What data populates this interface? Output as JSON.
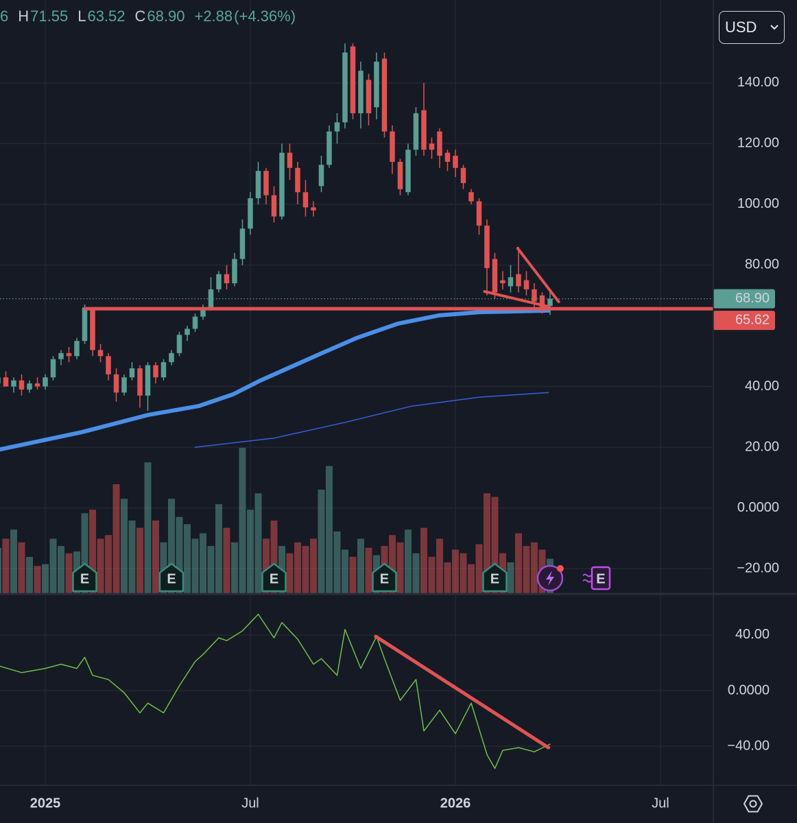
{
  "chart_data": {
    "type": "candlestick",
    "header": [
      "6",
      "H",
      "71.55",
      "L",
      "63.52",
      "C",
      "68.90",
      "+2.88",
      "(+4.36%)"
    ],
    "currency": "USD",
    "xlim": [
      -5.74,
      84.7
    ],
    "xticks": [
      {
        "value": 0,
        "label": "2025"
      },
      {
        "value": 26,
        "label": "Jul"
      },
      {
        "value": 52,
        "label": "2026"
      },
      {
        "value": 78,
        "label": "Jul"
      }
    ],
    "ylim": [
      -28.1,
      167.3
    ],
    "yticks": [
      {
        "value": 140,
        "label": "140.00"
      },
      {
        "value": 120,
        "label": "120.00"
      },
      {
        "value": 100,
        "label": "100.00"
      },
      {
        "value": 80,
        "label": "80.00"
      },
      {
        "value": 40,
        "label": "40.00"
      },
      {
        "value": 20,
        "label": "20.00"
      },
      {
        "value": 0,
        "label": "0.0000"
      },
      {
        "value": -20,
        "label": "−20.00"
      }
    ],
    "x": [
      -6,
      -5,
      -4,
      -3,
      -2,
      -1,
      0,
      1,
      2,
      3,
      4,
      5,
      6,
      7,
      8,
      9,
      10,
      11,
      12,
      13,
      14,
      15,
      16,
      17,
      18,
      19,
      20,
      21,
      22,
      23,
      24,
      25,
      26,
      27,
      28,
      29,
      30,
      31,
      32,
      33,
      34,
      35,
      36,
      37,
      38,
      39,
      40,
      41,
      42,
      43,
      44,
      45,
      46,
      47,
      48,
      49,
      50,
      51,
      52,
      53,
      54,
      55,
      56,
      57,
      58,
      59,
      60,
      61,
      62,
      63,
      64
    ],
    "open": [
      41,
      43,
      40,
      42,
      39,
      41,
      40,
      43,
      49,
      51,
      50,
      55,
      66,
      52,
      50,
      44,
      38,
      43,
      46,
      37,
      47,
      43,
      48,
      51,
      57,
      59,
      63,
      66,
      72,
      77,
      74,
      82,
      92,
      102,
      111,
      103,
      96,
      117,
      112,
      104,
      99,
      106,
      113,
      124,
      127,
      152,
      130,
      141,
      132,
      148,
      124,
      114,
      104,
      118,
      131,
      120,
      124,
      117,
      116,
      112,
      104,
      101,
      93,
      82,
      75,
      73,
      77,
      75,
      72,
      70,
      66.5
    ],
    "high": [
      44,
      45,
      43,
      44,
      42,
      43,
      44,
      50,
      52,
      53,
      56,
      67,
      66,
      54,
      51,
      46,
      44,
      48,
      47,
      48,
      48,
      49,
      52,
      58,
      60,
      64,
      67,
      76,
      78,
      80,
      84,
      95,
      104,
      114,
      112,
      106,
      120,
      120,
      114,
      108,
      101,
      116,
      126,
      130,
      153,
      153,
      147,
      143,
      150,
      150,
      126,
      115,
      120,
      132,
      140,
      122,
      125,
      118,
      118,
      113,
      105,
      102,
      95,
      84,
      78,
      80,
      86,
      78,
      74,
      71,
      71.55
    ],
    "low": [
      39,
      40,
      38,
      37,
      38,
      39,
      39,
      42,
      47,
      48,
      49,
      54,
      50,
      48,
      42,
      35,
      37,
      42,
      33,
      32,
      41,
      42,
      47,
      50,
      55,
      58,
      62,
      65,
      71,
      72,
      73,
      80,
      90,
      100,
      100,
      94,
      95,
      108,
      100,
      96,
      96,
      104,
      112,
      120,
      125,
      128,
      125,
      126,
      128,
      122,
      110,
      103,
      103,
      116,
      116,
      115,
      112,
      111,
      109,
      105,
      100,
      90,
      70,
      69,
      72,
      71,
      71,
      70,
      66,
      64,
      63.52
    ],
    "close": [
      43,
      40,
      42,
      39,
      41,
      40,
      43,
      49,
      51,
      50,
      55,
      66,
      52,
      50,
      44,
      38,
      43,
      46,
      37,
      47,
      43,
      48,
      51,
      57,
      59,
      63,
      66,
      72,
      77,
      74,
      82,
      92,
      102,
      111,
      103,
      96,
      117,
      112,
      104,
      99,
      98,
      113,
      124,
      127,
      150,
      130,
      144,
      130,
      147,
      124,
      114,
      105,
      118,
      130,
      118,
      118,
      116,
      114,
      112,
      107,
      101,
      93,
      79,
      71,
      74,
      76,
      73,
      72,
      68,
      66.02,
      68.9
    ],
    "volume": [
      25,
      30,
      35,
      28,
      20,
      15,
      16,
      30,
      26,
      22,
      23,
      44,
      46,
      30,
      32,
      60,
      52,
      40,
      36,
      72,
      40,
      28,
      52,
      42,
      38,
      30,
      33,
      26,
      49,
      36,
      28,
      80,
      46,
      55,
      30,
      40,
      26,
      22,
      28,
      26,
      30,
      57,
      70,
      34,
      24,
      20,
      30,
      25,
      21,
      26,
      32,
      28,
      35,
      22,
      36,
      20,
      30,
      17,
      24,
      22,
      16,
      27,
      55,
      53,
      22,
      17,
      33,
      26,
      28,
      24,
      19
    ],
    "vlim": [
      0,
      100
    ],
    "up_color": "#5a9e94",
    "down_color": "#e05353",
    "moving_averages": [
      {
        "color": "#4a8fe7",
        "width": 6,
        "x": [
          -5.7,
          4.7,
          13,
          19.5,
          23.8,
          27.3,
          35.1,
          39.5,
          44.7,
          49.9,
          55.1,
          63.8
        ],
        "values": [
          19.3,
          25,
          30.6,
          33.6,
          37.4,
          42,
          51,
          56,
          60.7,
          63.4,
          64.5,
          65
        ]
      },
      {
        "color": "#3a5ee0",
        "width": 1.5,
        "x": [
          19,
          29,
          37.7,
          46.4,
          55.1,
          63.8
        ],
        "values": [
          20,
          23,
          28,
          33.5,
          36.5,
          38
        ]
      }
    ],
    "last_price": {
      "value": 68.9,
      "label": "68.90",
      "color": "#5a9e94"
    },
    "level": {
      "from_x": 4.9,
      "value": 65.62,
      "color": "#e05353"
    },
    "drawings": [
      {
        "x": [
          55.7,
          63.8
        ],
        "values": [
          71.3,
          66.3
        ]
      },
      {
        "x": [
          59.9,
          65.1
        ],
        "values": [
          85.5,
          67.9
        ]
      }
    ],
    "earnings": {
      "x": [
        5,
        16,
        29,
        43,
        57
      ],
      "label": "E",
      "upcoming_x": 70
    },
    "indicator": {
      "color": "#6fbf4a",
      "y2lim": [
        -68.1,
        68.6
      ],
      "y2ticks": [
        {
          "value": 40,
          "label": "40.00"
        },
        {
          "value": 0,
          "label": "0.0000"
        },
        {
          "value": -40,
          "label": "−40.00"
        }
      ],
      "x": [
        -6,
        -3,
        0,
        2,
        4,
        5,
        6,
        8,
        10,
        12,
        13,
        15,
        17,
        19,
        20,
        22,
        23,
        25,
        27,
        29,
        30,
        32,
        34,
        35,
        37,
        38,
        40,
        42,
        43,
        45,
        47,
        48,
        50,
        52,
        54,
        56,
        57,
        58,
        60,
        62,
        64
      ],
      "values": [
        18,
        13,
        16,
        19,
        16,
        24,
        11,
        8,
        -1.5,
        -16,
        -9,
        -16,
        3.5,
        21,
        26,
        38,
        36,
        43,
        55,
        38,
        49,
        37,
        19,
        23,
        11,
        44,
        16,
        39,
        23,
        -7,
        8,
        -29,
        -14,
        -31,
        -9,
        -46,
        -56,
        -43,
        -41,
        -44,
        -38.5
      ],
      "trendline": {
        "x": [
          41.9,
          63.8
        ],
        "values": [
          39,
          -41
        ],
        "color": "#e05353"
      }
    }
  }
}
